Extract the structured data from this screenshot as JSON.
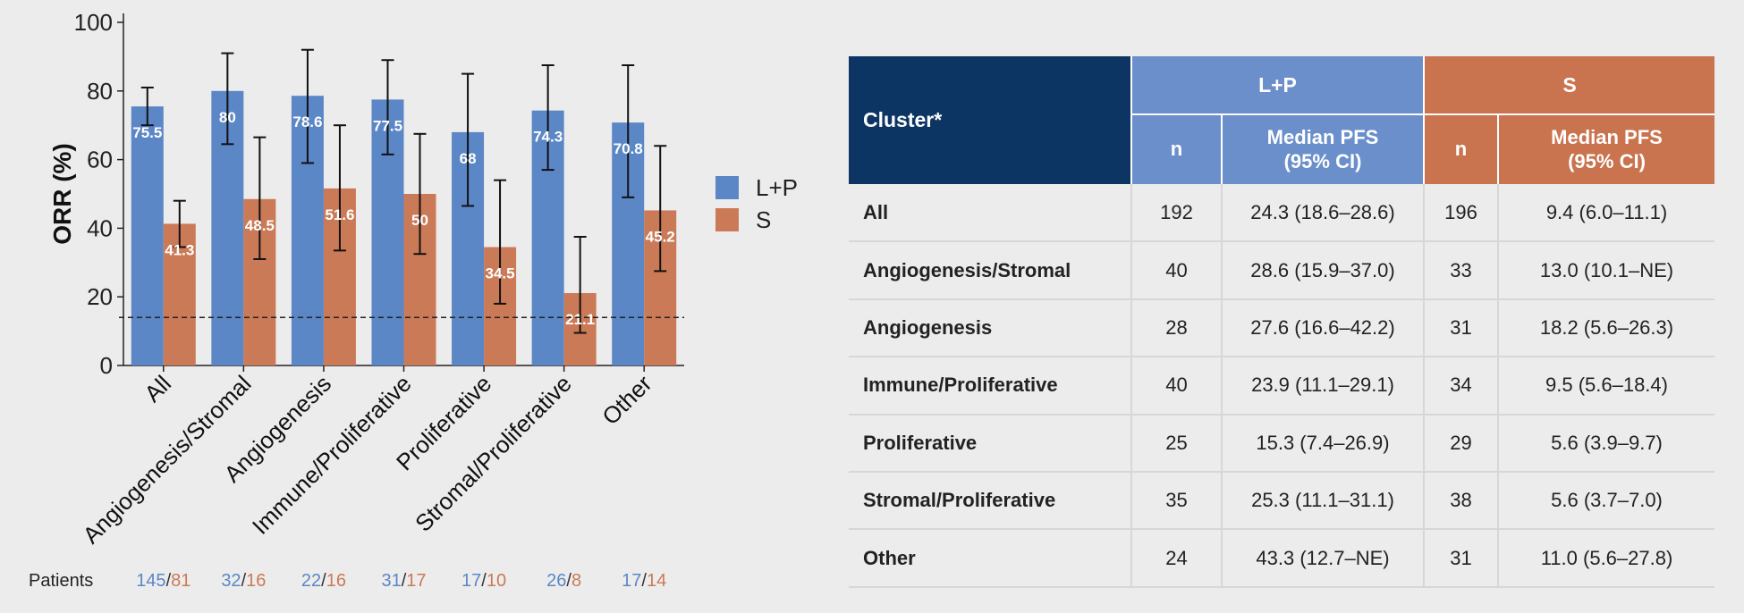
{
  "chart_data": {
    "type": "bar",
    "ylabel": "ORR (%)",
    "ylim": [
      0,
      100
    ],
    "yticks": [
      "0",
      "20",
      "40",
      "60",
      "80",
      "100"
    ],
    "reference_line": 14,
    "categories": [
      "All",
      "Angiogenesis/Stromal",
      "Angiogenesis",
      "Immune/Proliferative",
      "Proliferative",
      "Stromal/Proliferative",
      "Other"
    ],
    "series": [
      {
        "name": "L+P",
        "color": "#5b87c6",
        "values": [
          75.5,
          80,
          78.6,
          77.5,
          68,
          74.3,
          70.8
        ],
        "labels": [
          "75.5",
          "80",
          "78.6",
          "77.5",
          "68",
          "74.3",
          "70.8"
        ],
        "ci_low": [
          70,
          64.5,
          59,
          61.5,
          46.5,
          57,
          49
        ],
        "ci_high": [
          81,
          91,
          92,
          89,
          85,
          87.5,
          87.5
        ]
      },
      {
        "name": "S",
        "color": "#cb7a57",
        "values": [
          41.3,
          48.5,
          51.6,
          50,
          34.5,
          21.1,
          45.2
        ],
        "labels": [
          "41.3",
          "48.5",
          "51.6",
          "50",
          "34.5",
          "21.1",
          "45.2"
        ],
        "ci_low": [
          34.5,
          31,
          33.5,
          32.5,
          18,
          9.5,
          27.5
        ],
        "ci_high": [
          48,
          66.5,
          70,
          67.5,
          54,
          37.5,
          64
        ]
      }
    ],
    "legend": [
      "L+P",
      "S"
    ],
    "legend_position": "right",
    "patients_label": "Patients",
    "patients": [
      {
        "lp": "145",
        "s": "81"
      },
      {
        "lp": "32",
        "s": "16"
      },
      {
        "lp": "22",
        "s": "16"
      },
      {
        "lp": "31",
        "s": "17"
      },
      {
        "lp": "17",
        "s": "10"
      },
      {
        "lp": "26",
        "s": "8"
      },
      {
        "lp": "17",
        "s": "14"
      }
    ]
  },
  "table": {
    "cluster_header": "Cluster*",
    "lp_header": "L+P",
    "s_header": "S",
    "n_label": "n",
    "pfs_label_line1": "Median PFS",
    "pfs_label_line2": "(95% CI)",
    "colors": {
      "navy": "#0d3563",
      "blue": "#6b8fcb",
      "orange": "#c9734f"
    },
    "rows": [
      {
        "cluster": "All",
        "lp_n": "192",
        "lp_pfs": "24.3 (18.6–28.6)",
        "s_n": "196",
        "s_pfs": "9.4 (6.0–11.1)"
      },
      {
        "cluster": "Angiogenesis/Stromal",
        "lp_n": "40",
        "lp_pfs": "28.6 (15.9–37.0)",
        "s_n": "33",
        "s_pfs": "13.0 (10.1–NE)"
      },
      {
        "cluster": "Angiogenesis",
        "lp_n": "28",
        "lp_pfs": "27.6 (16.6–42.2)",
        "s_n": "31",
        "s_pfs": "18.2 (5.6–26.3)"
      },
      {
        "cluster": "Immune/Proliferative",
        "lp_n": "40",
        "lp_pfs": "23.9 (11.1–29.1)",
        "s_n": "34",
        "s_pfs": "9.5 (5.6–18.4)"
      },
      {
        "cluster": "Proliferative",
        "lp_n": "25",
        "lp_pfs": "15.3 (7.4–26.9)",
        "s_n": "29",
        "s_pfs": "5.6 (3.9–9.7)"
      },
      {
        "cluster": "Stromal/Proliferative",
        "lp_n": "35",
        "lp_pfs": "25.3 (11.1–31.1)",
        "s_n": "38",
        "s_pfs": "5.6 (3.7–7.0)"
      },
      {
        "cluster": "Other",
        "lp_n": "24",
        "lp_pfs": "43.3 (12.7–NE)",
        "s_n": "31",
        "s_pfs": "11.0 (5.6–27.8)"
      }
    ]
  }
}
